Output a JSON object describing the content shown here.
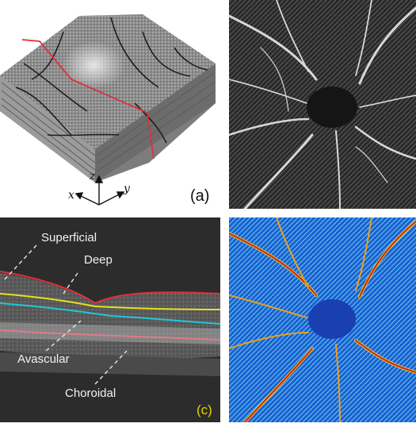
{
  "panels": {
    "a": {
      "tag": "(a)",
      "axes": {
        "x": "x",
        "y": "y",
        "z": "z"
      }
    },
    "b": {
      "tag": ""
    },
    "c": {
      "tag": "(c)",
      "layer_labels": {
        "superficial": "Superficial",
        "deep": "Deep",
        "avascular": "Avascular",
        "choroidal": "Choroidal"
      }
    },
    "d": {
      "tag": ""
    }
  },
  "colors": {
    "boundary_red": "#e0303a",
    "boundary_yellow": "#e8e020",
    "boundary_cyan": "#20c8d8",
    "boundary_pink": "#e07a8a",
    "label_yellow": "#e8d200",
    "heatmap_blue": "#1f5fd1"
  }
}
